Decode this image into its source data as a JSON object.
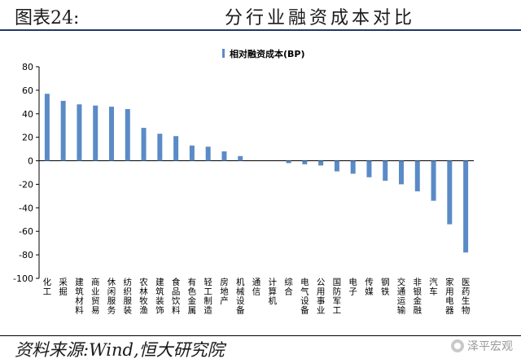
{
  "header": {
    "label": "图表24:",
    "title": "分行业融资成本对比"
  },
  "footer": {
    "source": "资料来源:Wind,恒大研究院",
    "watermark": "泽平宏观"
  },
  "colors": {
    "bar": "#5b8bc6",
    "axis": "#000000",
    "header_rule": "#1f3864"
  },
  "chart_data": {
    "type": "bar",
    "legend": "相对融资成本(BP)",
    "ylim": [
      -100,
      80
    ],
    "yticks": [
      80,
      60,
      40,
      20,
      0,
      -20,
      -40,
      -60,
      -80,
      -100
    ],
    "grid": false,
    "legend_position": "top-center",
    "categories": [
      "化工",
      "采掘",
      "建筑材料",
      "商业贸易",
      "休闲服务",
      "纺织服装",
      "农林牧渔",
      "建筑装饰",
      "食品饮料",
      "有色金属",
      "轻工制造",
      "房地产",
      "机械设备",
      "通信",
      "计算机",
      "综合",
      "电气设备",
      "公用事业",
      "国防军工",
      "电子",
      "传媒",
      "钢铁",
      "交通运输",
      "非银金融",
      "汽车",
      "家用电器",
      "医药生物"
    ],
    "series": [
      {
        "name": "相对融资成本(BP)",
        "values": [
          57,
          51,
          48,
          47,
          46,
          44,
          28,
          23,
          21,
          13,
          12,
          8,
          4,
          0,
          0,
          -2,
          -3,
          -4,
          -9,
          -11,
          -14,
          -17,
          -20,
          -26,
          -34,
          -54,
          -78
        ]
      }
    ]
  }
}
